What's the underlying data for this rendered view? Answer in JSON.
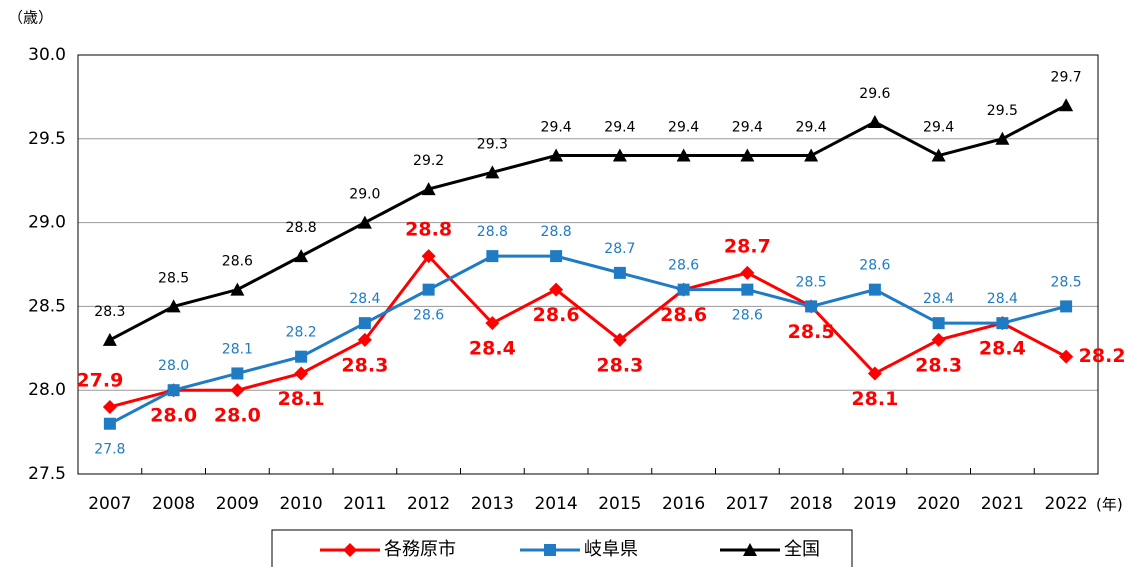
{
  "chart_data": {
    "type": "line",
    "y_unit": "（歳）",
    "x_unit": "(年)",
    "categories": [
      "2007",
      "2008",
      "2009",
      "2010",
      "2011",
      "2012",
      "2013",
      "2014",
      "2015",
      "2016",
      "2017",
      "2018",
      "2019",
      "2020",
      "2021",
      "2022"
    ],
    "series": [
      {
        "name": "各務原市",
        "color": "#ff0000",
        "marker": "diamond",
        "values": [
          27.9,
          28.0,
          28.0,
          28.1,
          28.3,
          28.8,
          28.4,
          28.6,
          28.3,
          28.6,
          28.7,
          28.5,
          28.1,
          28.3,
          28.4,
          28.2
        ],
        "value_labels": [
          "27.9",
          "28.0",
          "28.0",
          "28.1",
          "28.3",
          "28.8",
          "28.4",
          "28.6",
          "28.3",
          "28.6",
          "28.7",
          "28.5",
          "28.1",
          "28.3",
          "28.4",
          "28.2"
        ]
      },
      {
        "name": "岐阜県",
        "color": "#1f7bc4",
        "marker": "square",
        "values": [
          27.8,
          28.0,
          28.1,
          28.2,
          28.4,
          28.6,
          28.8,
          28.8,
          28.7,
          28.6,
          28.6,
          28.5,
          28.6,
          28.4,
          28.4,
          28.5
        ],
        "value_labels": [
          "27.8",
          "28.0",
          "28.1",
          "28.2",
          "28.4",
          "28.6",
          "28.8",
          "28.8",
          "28.7",
          "28.6",
          "28.6",
          "28.5",
          "28.6",
          "28.4",
          "28.4",
          "28.5"
        ]
      },
      {
        "name": "全国",
        "color": "#000000",
        "marker": "triangle",
        "values": [
          28.3,
          28.5,
          28.6,
          28.8,
          29.0,
          29.2,
          29.3,
          29.4,
          29.4,
          29.4,
          29.4,
          29.4,
          29.6,
          29.4,
          29.5,
          29.7
        ],
        "value_labels": [
          "28.3",
          "28.5",
          "28.6",
          "28.8",
          "29.0",
          "29.2",
          "29.3",
          "29.4",
          "29.4",
          "29.4",
          "29.4",
          "29.4",
          "29.6",
          "29.4",
          "29.5",
          "29.7"
        ]
      }
    ],
    "ylim": [
      27.5,
      30.0
    ],
    "yticks": [
      27.5,
      {
        "value": 28.0,
        "label": "28.0"
      },
      28.5,
      {
        "value": 29.0,
        "label": "29.0"
      },
      29.5,
      {
        "value": 30.0,
        "label": "30.0"
      }
    ],
    "grid": true,
    "legend": "bottom"
  }
}
